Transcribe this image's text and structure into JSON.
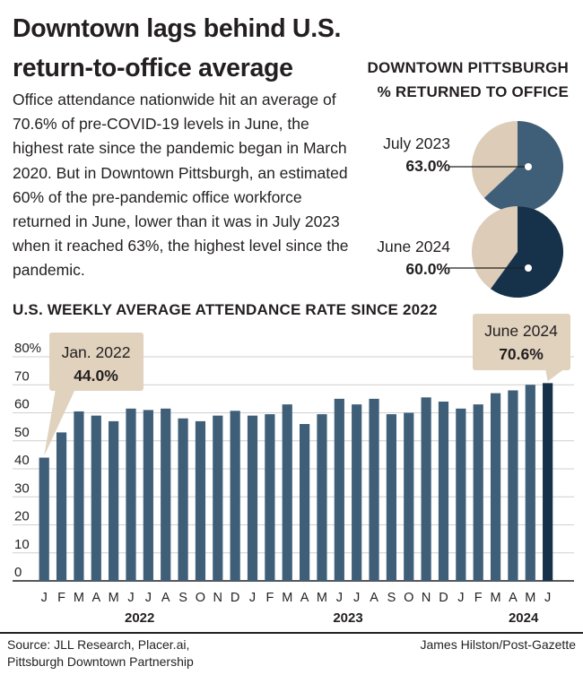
{
  "headline": {
    "line1": "Downtown lags behind U.S.",
    "line2": "return-to-office average"
  },
  "body_text": "Office attendance nationwide hit an average of 70.6% of pre-COVID-19 levels in June, the highest rate since the pandemic began in March 2020. But in Downtown Pittsburgh, an estimated 60% of the pre-pandemic office workforce returned in June, lower than it was in July 2023 when it reached 63%, the highest level since the pandemic.",
  "pies": {
    "title_line1": "DOWNTOWN PITTSBURGH",
    "title_line2": "% RETURNED TO OFFICE",
    "items": [
      {
        "label": "July 2023",
        "pct_label": "63.0%",
        "value": 63.0,
        "color": "#3f5f78"
      },
      {
        "label": "June 2024",
        "pct_label": "60.0%",
        "value": 60.0,
        "color": "#15324a"
      }
    ],
    "remainder_color": "#dcccb8"
  },
  "bar_section_title": "U.S. WEEKLY AVERAGE ATTENDANCE RATE SINCE 2022",
  "callouts": {
    "first": {
      "label": "Jan. 2022",
      "value": "44.0%"
    },
    "last": {
      "label": "June 2024",
      "value": "70.6%"
    },
    "fill": "#e0d2bd"
  },
  "colors": {
    "bar": "#3f5f78",
    "bar_highlight": "#15324a",
    "grid": "#cfcfcf",
    "axis": "#231f20"
  },
  "chart_data": {
    "type": "bar",
    "title": "U.S. WEEKLY AVERAGE ATTENDANCE RATE SINCE 2022",
    "xlabel": "",
    "ylabel": "",
    "ylim": [
      0,
      80
    ],
    "yticks": [
      0,
      10,
      20,
      30,
      40,
      50,
      60,
      70,
      80
    ],
    "ytick_labels": [
      "0",
      "10",
      "20",
      "30",
      "40",
      "50",
      "60",
      "70",
      "80%"
    ],
    "grid": true,
    "categories": [
      "J",
      "F",
      "M",
      "A",
      "M",
      "J",
      "J",
      "A",
      "S",
      "O",
      "N",
      "D",
      "J",
      "F",
      "M",
      "A",
      "M",
      "J",
      "J",
      "A",
      "S",
      "O",
      "N",
      "D",
      "J",
      "F",
      "M",
      "A",
      "M",
      "J"
    ],
    "years": [
      {
        "label": "2022",
        "start": 0,
        "end": 11
      },
      {
        "label": "2023",
        "start": 12,
        "end": 23
      },
      {
        "label": "2024",
        "start": 24,
        "end": 29
      }
    ],
    "values": [
      44.0,
      53.0,
      60.5,
      59.0,
      57.0,
      61.5,
      61.0,
      61.5,
      58.0,
      57.0,
      59.0,
      60.7,
      59.0,
      59.5,
      63.0,
      56.0,
      59.5,
      65.0,
      63.0,
      65.0,
      59.5,
      60.0,
      65.5,
      64.0,
      61.5,
      63.0,
      67.0,
      68.0,
      70.0,
      70.6
    ]
  },
  "footer": {
    "source_line1": "Source: JLL Research, Placer.ai,",
    "source_line2": "Pittsburgh Downtown Partnership",
    "credit": "James Hilston/Post-Gazette"
  }
}
